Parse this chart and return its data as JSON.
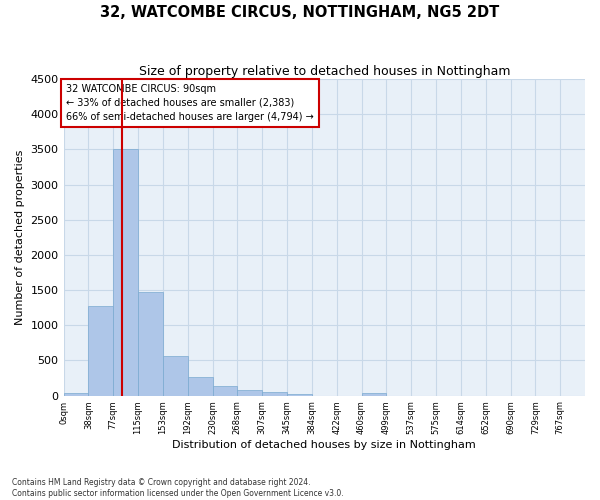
{
  "title": "32, WATCOMBE CIRCUS, NOTTINGHAM, NG5 2DT",
  "subtitle": "Size of property relative to detached houses in Nottingham",
  "xlabel": "Distribution of detached houses by size in Nottingham",
  "ylabel": "Number of detached properties",
  "bin_labels": [
    "0sqm",
    "38sqm",
    "77sqm",
    "115sqm",
    "153sqm",
    "192sqm",
    "230sqm",
    "268sqm",
    "307sqm",
    "345sqm",
    "384sqm",
    "422sqm",
    "460sqm",
    "499sqm",
    "537sqm",
    "575sqm",
    "614sqm",
    "652sqm",
    "690sqm",
    "729sqm",
    "767sqm"
  ],
  "bar_heights": [
    30,
    1280,
    3500,
    1480,
    570,
    270,
    140,
    80,
    50,
    20,
    0,
    0,
    30,
    0,
    0,
    0,
    0,
    0,
    0,
    0,
    0
  ],
  "bar_color": "#aec6e8",
  "bar_edge_color": "#7aaad0",
  "ylim": [
    0,
    4500
  ],
  "yticks": [
    0,
    500,
    1000,
    1500,
    2000,
    2500,
    3000,
    3500,
    4000,
    4500
  ],
  "property_line_x": 2.34,
  "annotation_title": "32 WATCOMBE CIRCUS: 90sqm",
  "annotation_line1": "← 33% of detached houses are smaller (2,383)",
  "annotation_line2": "66% of semi-detached houses are larger (4,794) →",
  "annotation_box_color": "#ffffff",
  "annotation_box_edge": "#cc0000",
  "vline_color": "#cc0000",
  "grid_color": "#c8d8e8",
  "background_color": "#e8f0f8",
  "footer_line1": "Contains HM Land Registry data © Crown copyright and database right 2024.",
  "footer_line2": "Contains public sector information licensed under the Open Government Licence v3.0."
}
